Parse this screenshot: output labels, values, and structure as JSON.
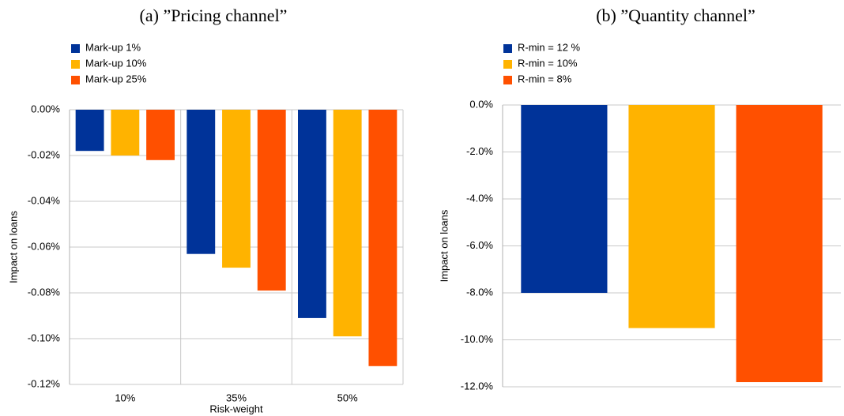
{
  "chart_data": [
    {
      "type": "bar",
      "title": "(a) ”Pricing channel”",
      "xlabel": "Risk-weight",
      "ylabel": "Impact on loans",
      "categories": [
        "10%",
        "35%",
        "50%"
      ],
      "series": [
        {
          "name": "Mark-up 1%",
          "color": "#003399",
          "values": [
            -0.018,
            -0.063,
            -0.091
          ]
        },
        {
          "name": "Mark-up 10%",
          "color": "#ffb300",
          "values": [
            -0.02,
            -0.069,
            -0.099
          ]
        },
        {
          "name": "Mark-up 25%",
          "color": "#ff5000",
          "values": [
            -0.022,
            -0.079,
            -0.112
          ]
        }
      ],
      "ylim": [
        -0.12,
        0
      ],
      "yticks": [
        {
          "value": 0,
          "label": "0.00%"
        },
        {
          "value": -0.02,
          "label": "-0.02%"
        },
        {
          "value": -0.04,
          "label": "-0.04%"
        },
        {
          "value": -0.06,
          "label": "-0.06%"
        },
        {
          "value": -0.08,
          "label": "-0.08%"
        },
        {
          "value": -0.1,
          "label": "-0.10%"
        },
        {
          "value": -0.12,
          "label": "-0.12%"
        }
      ],
      "grid": true
    },
    {
      "type": "bar",
      "title": "(b) ”Quantity channel”",
      "ylabel": "Impact on loans",
      "categories": [
        null
      ],
      "series": [
        {
          "name": "R-min = 12 %",
          "color": "#003399",
          "values": [
            -8.0
          ]
        },
        {
          "name": "R-min = 10%",
          "color": "#ffb300",
          "values": [
            -9.5
          ]
        },
        {
          "name": "R-min = 8%",
          "color": "#ff5000",
          "values": [
            -11.8
          ]
        }
      ],
      "ylim": [
        -12,
        0
      ],
      "yticks": [
        {
          "value": 0,
          "label": "0.0%"
        },
        {
          "value": -2,
          "label": "-2.0%"
        },
        {
          "value": -4,
          "label": "-4.0%"
        },
        {
          "value": -6,
          "label": "-6.0%"
        },
        {
          "value": -8,
          "label": "-8.0%"
        },
        {
          "value": -10,
          "label": "-10.0%"
        },
        {
          "value": -12,
          "label": "-12.0%"
        }
      ],
      "grid": true
    }
  ]
}
